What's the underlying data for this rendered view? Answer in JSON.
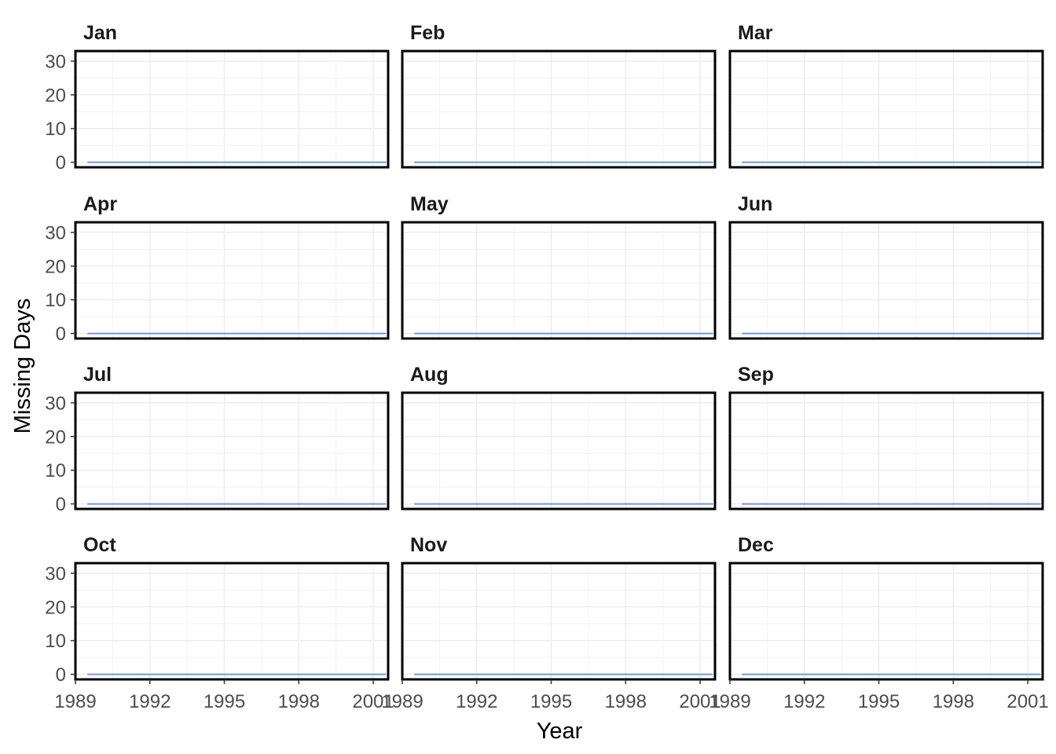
{
  "chart_data": {
    "type": "line",
    "layout": "facet-grid",
    "xlabel": "Year",
    "ylabel": "Missing Days",
    "xlim": [
      1989,
      2001.6
    ],
    "ylim": [
      -1.5,
      33
    ],
    "x_ticks": [
      1989,
      1992,
      1995,
      1998,
      2001
    ],
    "x_tick_labels": [
      "1989",
      "1992",
      "1995",
      "1998",
      "2001"
    ],
    "y_ticks": [
      0,
      10,
      20,
      30
    ],
    "y_tick_labels": [
      "0",
      "10",
      "20",
      "30"
    ],
    "grid": true,
    "line_color": "#6f9ad8",
    "x": [
      1989.5,
      1990.5,
      1991.5,
      1992.5,
      1993.5,
      1994.5,
      1995.5,
      1996.5,
      1997.5,
      1998.5,
      1999.5,
      2000.5,
      2001.5
    ],
    "facets": [
      {
        "label": "Jan",
        "values": [
          0,
          0,
          0,
          0,
          0,
          0,
          0,
          0,
          0,
          0,
          0,
          0,
          0
        ]
      },
      {
        "label": "Feb",
        "values": [
          0,
          0,
          0,
          0,
          0,
          0,
          0,
          0,
          0,
          0,
          0,
          0,
          0
        ]
      },
      {
        "label": "Mar",
        "values": [
          0,
          0,
          0,
          0,
          0,
          0,
          0,
          0,
          0,
          0,
          0,
          0,
          0
        ]
      },
      {
        "label": "Apr",
        "values": [
          0,
          0,
          0,
          0,
          0,
          0,
          0,
          0,
          0,
          0,
          0,
          0,
          0
        ]
      },
      {
        "label": "May",
        "values": [
          0,
          0,
          0,
          0,
          0,
          0,
          0,
          0,
          0,
          0,
          0,
          0,
          0
        ]
      },
      {
        "label": "Jun",
        "values": [
          0,
          0,
          0,
          0,
          0,
          0,
          0,
          0,
          0,
          0,
          0,
          0,
          0
        ]
      },
      {
        "label": "Jul",
        "values": [
          0,
          0,
          0,
          0,
          0,
          0,
          0,
          0,
          0,
          0,
          0,
          0,
          0
        ]
      },
      {
        "label": "Aug",
        "values": [
          0,
          0,
          0,
          0,
          0,
          0,
          0,
          0,
          0,
          0,
          0,
          0,
          0
        ]
      },
      {
        "label": "Sep",
        "values": [
          0,
          0,
          0,
          0,
          0,
          0,
          0,
          0,
          0,
          0,
          0,
          0,
          0
        ]
      },
      {
        "label": "Oct",
        "values": [
          0,
          0,
          0,
          0,
          0,
          0,
          0,
          0,
          0,
          0,
          0,
          0,
          0
        ]
      },
      {
        "label": "Nov",
        "values": [
          0,
          0,
          0,
          0,
          0,
          0,
          0,
          0,
          0,
          0,
          0,
          0,
          0
        ]
      },
      {
        "label": "Dec",
        "values": [
          0,
          0,
          0,
          0,
          0,
          0,
          0,
          0,
          0,
          0,
          0,
          0,
          0
        ]
      }
    ]
  }
}
